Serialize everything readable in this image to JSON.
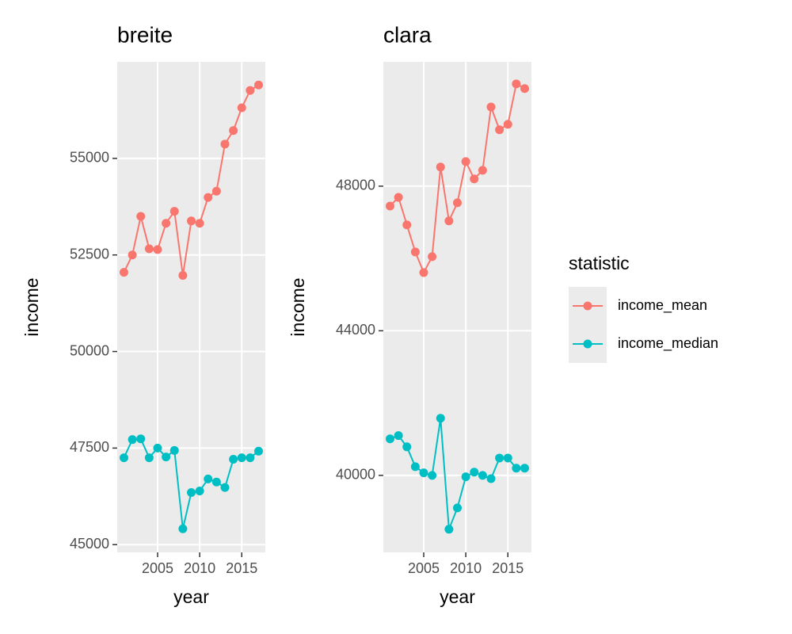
{
  "chart_data": [
    {
      "type": "line",
      "title": "breite",
      "xlabel": "year",
      "ylabel": "income",
      "x": [
        2001,
        2002,
        2003,
        2004,
        2005,
        2006,
        2007,
        2008,
        2009,
        2010,
        2011,
        2012,
        2013,
        2014,
        2015,
        2016,
        2017
      ],
      "xlim": [
        2000.2,
        2017.8
      ],
      "xticks": [
        2005,
        2010,
        2015
      ],
      "ylim": [
        44800,
        57500
      ],
      "yticks": [
        45000,
        47500,
        50000,
        52500,
        55000
      ],
      "grid": true,
      "series": [
        {
          "name": "income_mean",
          "color": "#f8766d",
          "values": [
            52050,
            52500,
            53500,
            52660,
            52640,
            53320,
            53630,
            51970,
            53380,
            53320,
            53990,
            54150,
            55370,
            55720,
            56310,
            56760,
            56900
          ]
        },
        {
          "name": "income_median",
          "color": "#00bfc4",
          "values": [
            47250,
            47720,
            47740,
            47250,
            47500,
            47270,
            47440,
            45410,
            46350,
            46390,
            46700,
            46620,
            46480,
            47210,
            47250,
            47250,
            47420
          ]
        }
      ]
    },
    {
      "type": "line",
      "title": "clara",
      "xlabel": "year",
      "ylabel": "income",
      "x": [
        2001,
        2002,
        2003,
        2004,
        2005,
        2006,
        2007,
        2008,
        2009,
        2010,
        2011,
        2012,
        2013,
        2014,
        2015,
        2016,
        2017
      ],
      "xlim": [
        2000.2,
        2017.8
      ],
      "xticks": [
        2005,
        2010,
        2015
      ],
      "ylim": [
        37870,
        51440
      ],
      "yticks": [
        40000,
        44000,
        48000
      ],
      "grid": true,
      "series": [
        {
          "name": "income_mean",
          "color": "#f8766d",
          "values": [
            47450,
            47690,
            46930,
            46180,
            45610,
            46050,
            48530,
            47040,
            47540,
            48680,
            48200,
            48440,
            50190,
            49560,
            49710,
            50830,
            50700
          ]
        },
        {
          "name": "income_median",
          "color": "#00bfc4",
          "values": [
            41010,
            41100,
            40790,
            40240,
            40070,
            40000,
            41580,
            38510,
            39100,
            39960,
            40090,
            40000,
            39910,
            40480,
            40480,
            40200,
            40200
          ]
        }
      ]
    }
  ],
  "legend": {
    "title": "statistic",
    "position": "right"
  }
}
